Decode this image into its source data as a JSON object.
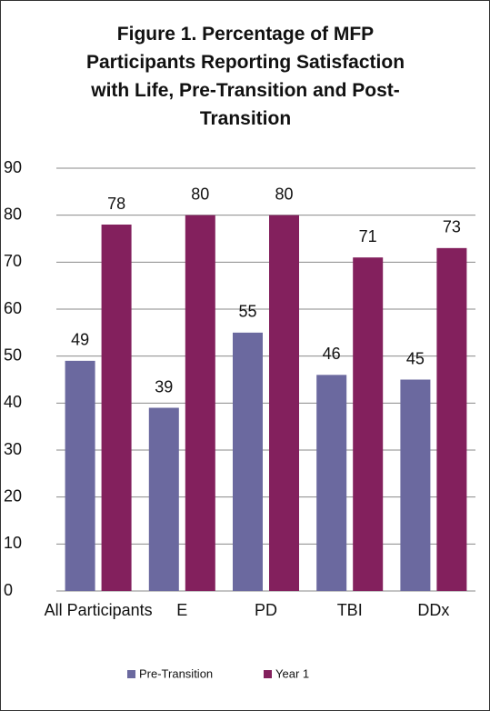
{
  "chart_data": {
    "type": "bar",
    "title": "Figure 1. Percentage of MFP Participants Reporting Satisfaction with Life, Pre-Transition and Post-Transition",
    "categories": [
      "All Participants",
      "E",
      "PD",
      "TBI",
      "DDx"
    ],
    "series": [
      {
        "name": "Pre-Transition",
        "color": "#6b699f",
        "values": [
          49,
          39,
          55,
          46,
          45
        ]
      },
      {
        "name": "Year 1",
        "color": "#83205d",
        "values": [
          78,
          80,
          80,
          71,
          73
        ]
      }
    ],
    "ylim": [
      0,
      90
    ],
    "yticks": [
      0,
      10,
      20,
      30,
      40,
      50,
      60,
      70,
      80,
      90
    ],
    "grid": true,
    "legend": "bottom"
  }
}
